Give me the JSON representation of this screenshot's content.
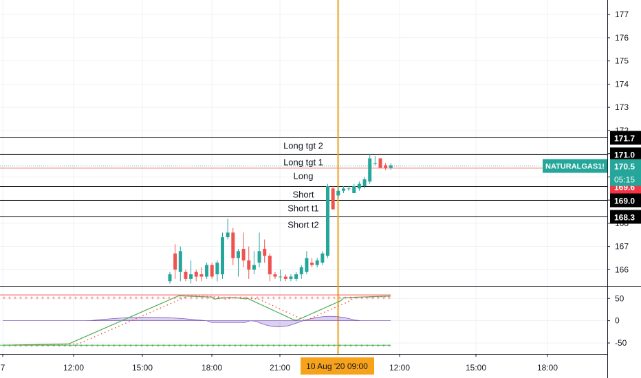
{
  "chart_data": {
    "type": "candlestick",
    "symbol": "NATURALGAS1!",
    "countdown": "05:15",
    "crosshair_time": "10 Aug '20  09:00",
    "last_price": 170.5,
    "x_axis_labels": [
      "7",
      "12:00",
      "15:00",
      "18:00",
      "21:00",
      "12:00",
      "15:00",
      "18:00"
    ],
    "price_axis": {
      "ticks": [
        166.0,
        167.0,
        168.0,
        169.0,
        170.0,
        171.0,
        172.0,
        173.0,
        174.0,
        175.0,
        176.0,
        177.0
      ],
      "range": [
        165.3,
        177.45
      ]
    },
    "level_lines": [
      {
        "name": "Long tgt 2",
        "price": 171.7,
        "color": "#000000",
        "badge_bg": "#000000",
        "badge_text": "171.7"
      },
      {
        "name": "Long tgt 1",
        "price": 171.0,
        "color": "#000000",
        "badge_bg": "#000000",
        "badge_text": "171.0"
      },
      {
        "name": "Long",
        "price": 170.4,
        "color": "#ef5350",
        "badge_bg": "#4caf50",
        "badge_text": "170.4"
      },
      {
        "name": "Short",
        "price": 169.6,
        "color": "#000000",
        "badge_bg": "#f23645",
        "badge_text": "169.6"
      },
      {
        "name": "Short t1",
        "price": 169.0,
        "color": "#000000",
        "badge_bg": "#000000",
        "badge_text": "169.0"
      },
      {
        "name": "Short t2",
        "price": 168.3,
        "color": "#000000",
        "badge_bg": "#000000",
        "badge_text": "168.3"
      }
    ],
    "candles": [
      {
        "o": 165.5,
        "h": 165.9,
        "l": 165.4,
        "c": 165.8
      },
      {
        "o": 166.7,
        "h": 167.1,
        "l": 165.6,
        "c": 166.0
      },
      {
        "o": 165.9,
        "h": 167.0,
        "l": 165.5,
        "c": 166.8
      },
      {
        "o": 165.9,
        "h": 166.0,
        "l": 165.5,
        "c": 165.6
      },
      {
        "o": 165.6,
        "h": 166.4,
        "l": 165.4,
        "c": 165.8
      },
      {
        "o": 165.9,
        "h": 166.0,
        "l": 165.5,
        "c": 165.7
      },
      {
        "o": 165.8,
        "h": 166.1,
        "l": 165.5,
        "c": 165.7
      },
      {
        "o": 165.7,
        "h": 166.3,
        "l": 165.6,
        "c": 166.2
      },
      {
        "o": 166.2,
        "h": 166.3,
        "l": 165.6,
        "c": 165.7
      },
      {
        "o": 165.8,
        "h": 166.4,
        "l": 165.5,
        "c": 166.3
      },
      {
        "o": 165.8,
        "h": 167.6,
        "l": 165.6,
        "c": 167.4
      },
      {
        "o": 167.4,
        "h": 168.2,
        "l": 167.3,
        "c": 167.6
      },
      {
        "o": 167.6,
        "h": 167.8,
        "l": 166.2,
        "c": 166.5
      },
      {
        "o": 166.5,
        "h": 166.9,
        "l": 165.7,
        "c": 166.8
      },
      {
        "o": 166.9,
        "h": 167.6,
        "l": 166.1,
        "c": 166.4
      },
      {
        "o": 166.4,
        "h": 167.0,
        "l": 165.6,
        "c": 166.0
      },
      {
        "o": 166.0,
        "h": 166.8,
        "l": 165.8,
        "c": 166.2
      },
      {
        "o": 166.3,
        "h": 167.6,
        "l": 166.1,
        "c": 166.8
      },
      {
        "o": 166.9,
        "h": 167.3,
        "l": 166.3,
        "c": 166.6
      },
      {
        "o": 166.6,
        "h": 166.7,
        "l": 165.5,
        "c": 165.8
      },
      {
        "o": 165.8,
        "h": 165.9,
        "l": 165.6,
        "c": 165.7
      },
      {
        "o": 165.7,
        "h": 166.0,
        "l": 165.5,
        "c": 165.7
      },
      {
        "o": 165.7,
        "h": 165.8,
        "l": 165.5,
        "c": 165.6
      },
      {
        "o": 165.6,
        "h": 165.8,
        "l": 165.5,
        "c": 165.7
      },
      {
        "o": 165.6,
        "h": 165.9,
        "l": 165.5,
        "c": 165.8
      },
      {
        "o": 165.8,
        "h": 166.2,
        "l": 165.6,
        "c": 166.1
      },
      {
        "o": 165.9,
        "h": 166.8,
        "l": 165.8,
        "c": 166.5
      },
      {
        "o": 166.3,
        "h": 166.5,
        "l": 166.1,
        "c": 166.2
      },
      {
        "o": 166.2,
        "h": 166.5,
        "l": 166.1,
        "c": 166.4
      },
      {
        "o": 166.3,
        "h": 166.8,
        "l": 166.2,
        "c": 166.7
      },
      {
        "o": 166.6,
        "h": 169.7,
        "l": 166.5,
        "c": 169.6
      },
      {
        "o": 169.5,
        "h": 169.6,
        "l": 168.6,
        "c": 168.6
      },
      {
        "o": 169.2,
        "h": 169.6,
        "l": 169.1,
        "c": 169.4
      },
      {
        "o": 169.4,
        "h": 169.6,
        "l": 169.3,
        "c": 169.5
      },
      {
        "o": 169.5,
        "h": 169.6,
        "l": 169.4,
        "c": 169.5
      },
      {
        "o": 169.3,
        "h": 169.7,
        "l": 169.3,
        "c": 169.6
      },
      {
        "o": 169.5,
        "h": 169.8,
        "l": 169.4,
        "c": 169.7
      },
      {
        "o": 169.6,
        "h": 170.0,
        "l": 169.5,
        "c": 169.9
      },
      {
        "o": 169.8,
        "h": 171.0,
        "l": 169.7,
        "c": 170.8
      },
      {
        "o": 170.6,
        "h": 170.9,
        "l": 170.5,
        "c": 170.6
      },
      {
        "o": 170.8,
        "h": 170.8,
        "l": 170.4,
        "c": 170.4
      },
      {
        "o": 170.5,
        "h": 170.6,
        "l": 170.3,
        "c": 170.4
      },
      {
        "o": 170.4,
        "h": 170.6,
        "l": 170.3,
        "c": 170.5
      }
    ],
    "indicator": {
      "ticks": [
        50.0,
        0.0,
        -50.0
      ],
      "range": [
        -70,
        72
      ],
      "upper_band": 58,
      "lower_band": -55
    }
  }
}
